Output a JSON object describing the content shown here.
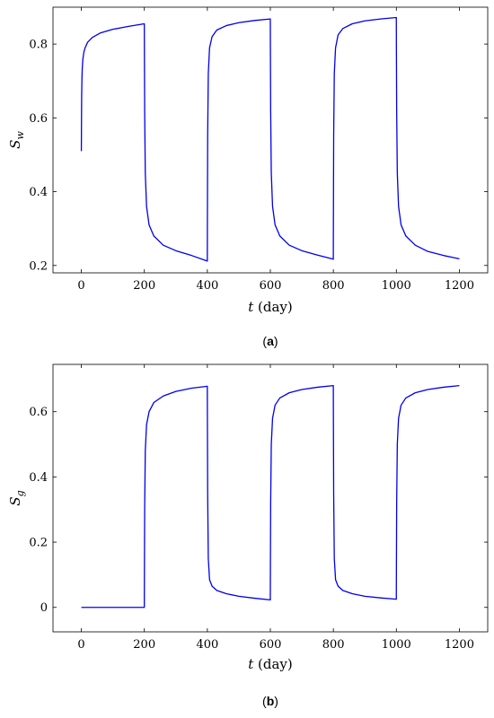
{
  "chart_data": [
    {
      "type": "line",
      "xlabel_var": "t",
      "xlabel_unit": " (day)",
      "ylabel_var": "S",
      "ylabel_sub": "w",
      "caption": "a",
      "xlim": [
        -90,
        1290
      ],
      "ylim": [
        0.18,
        0.9
      ],
      "xticks": [
        0,
        200,
        400,
        600,
        800,
        1000,
        1200
      ],
      "yticks": [
        0.2,
        0.4,
        0.6,
        0.8
      ],
      "ytick_labels": [
        "0.2",
        "0.4",
        "0.6",
        "0.8"
      ],
      "series": [
        {
          "color": "#0000ee",
          "x": [
            0,
            0.5,
            1,
            2,
            3,
            5,
            8,
            12,
            20,
            35,
            60,
            100,
            150,
            199.9,
            200.1,
            201,
            203,
            207,
            215,
            230,
            260,
            300,
            350,
            399.9,
            400.1,
            401,
            403,
            407,
            415,
            430,
            460,
            500,
            550,
            599.9,
            600.1,
            601,
            603,
            607,
            615,
            630,
            660,
            700,
            750,
            799.9,
            800.1,
            801,
            803,
            807,
            815,
            830,
            860,
            900,
            950,
            999.9,
            1000.1,
            1001,
            1003,
            1007,
            1015,
            1030,
            1060,
            1100,
            1150,
            1200
          ],
          "y": [
            0.51,
            0.6,
            0.66,
            0.71,
            0.735,
            0.76,
            0.778,
            0.79,
            0.805,
            0.818,
            0.83,
            0.84,
            0.848,
            0.855,
            0.8,
            0.62,
            0.45,
            0.36,
            0.31,
            0.28,
            0.255,
            0.24,
            0.227,
            0.212,
            0.3,
            0.55,
            0.72,
            0.79,
            0.82,
            0.838,
            0.85,
            0.858,
            0.864,
            0.868,
            0.8,
            0.62,
            0.45,
            0.36,
            0.31,
            0.28,
            0.255,
            0.24,
            0.228,
            0.217,
            0.3,
            0.55,
            0.72,
            0.79,
            0.825,
            0.842,
            0.855,
            0.863,
            0.868,
            0.872,
            0.8,
            0.62,
            0.45,
            0.36,
            0.31,
            0.28,
            0.255,
            0.238,
            0.227,
            0.218
          ]
        }
      ]
    },
    {
      "type": "line",
      "xlabel_var": "t",
      "xlabel_unit": " (day)",
      "ylabel_var": "S",
      "ylabel_sub": "g",
      "caption": "b",
      "xlim": [
        -90,
        1290
      ],
      "ylim": [
        -0.075,
        0.745
      ],
      "xticks": [
        0,
        200,
        400,
        600,
        800,
        1000,
        1200
      ],
      "yticks": [
        0,
        0.2,
        0.4,
        0.6
      ],
      "ytick_labels": [
        "0",
        "0.2",
        "0.4",
        "0.6"
      ],
      "series": [
        {
          "color": "#0000ee",
          "x": [
            0,
            199.9,
            200.1,
            201,
            203,
            207,
            215,
            230,
            260,
            300,
            350,
            399.9,
            400.1,
            401,
            403,
            407,
            415,
            430,
            460,
            500,
            550,
            599.9,
            600.1,
            601,
            603,
            607,
            615,
            630,
            660,
            700,
            750,
            799.9,
            800.1,
            801,
            803,
            807,
            815,
            830,
            860,
            900,
            950,
            999.9,
            1000.1,
            1001,
            1003,
            1007,
            1015,
            1030,
            1060,
            1100,
            1150,
            1200
          ],
          "y": [
            0,
            0,
            0.08,
            0.3,
            0.48,
            0.56,
            0.6,
            0.628,
            0.648,
            0.662,
            0.672,
            0.678,
            0.6,
            0.35,
            0.15,
            0.085,
            0.065,
            0.052,
            0.042,
            0.034,
            0.028,
            0.023,
            0.1,
            0.32,
            0.5,
            0.58,
            0.62,
            0.642,
            0.658,
            0.668,
            0.675,
            0.68,
            0.6,
            0.35,
            0.15,
            0.085,
            0.065,
            0.052,
            0.042,
            0.034,
            0.029,
            0.025,
            0.1,
            0.32,
            0.5,
            0.58,
            0.62,
            0.642,
            0.658,
            0.668,
            0.675,
            0.68
          ]
        }
      ]
    }
  ]
}
